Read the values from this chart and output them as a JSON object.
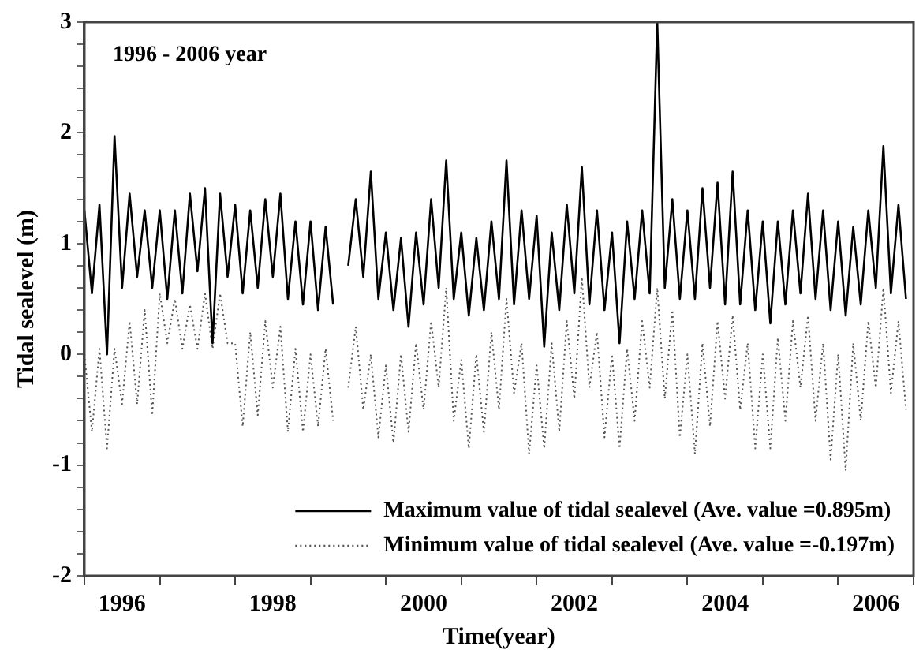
{
  "chart_data": {
    "type": "line",
    "xlabel": "Time(year)",
    "ylabel": "Tidal sealevel (m)",
    "annotations": [
      "1996 - 2006 year"
    ],
    "x": [
      1996.0,
      1996.1,
      1996.2,
      1996.3,
      1996.4,
      1996.5,
      1996.6,
      1996.7,
      1996.8,
      1996.9,
      1997.0,
      1997.1,
      1997.2,
      1997.3,
      1997.4,
      1997.5,
      1997.6,
      1997.7,
      1997.8,
      1997.9,
      1998.0,
      1998.1,
      1998.2,
      1998.3,
      1998.4,
      1998.5,
      1998.6,
      1998.7,
      1998.8,
      1998.9,
      1999.0,
      1999.1,
      1999.2,
      1999.3,
      1999.4,
      1999.5,
      1999.6,
      1999.7,
      1999.8,
      1999.9,
      2000.0,
      2000.1,
      2000.2,
      2000.3,
      2000.4,
      2000.5,
      2000.6,
      2000.7,
      2000.8,
      2000.9,
      2001.0,
      2001.1,
      2001.2,
      2001.3,
      2001.4,
      2001.5,
      2001.6,
      2001.7,
      2001.8,
      2001.9,
      2002.0,
      2002.1,
      2002.2,
      2002.3,
      2002.4,
      2002.5,
      2002.6,
      2002.7,
      2002.8,
      2002.9,
      2003.0,
      2003.1,
      2003.2,
      2003.3,
      2003.4,
      2003.5,
      2003.6,
      2003.7,
      2003.8,
      2003.9,
      2004.0,
      2004.1,
      2004.2,
      2004.3,
      2004.4,
      2004.5,
      2004.6,
      2004.7,
      2004.8,
      2004.9,
      2005.0,
      2005.1,
      2005.2,
      2005.3,
      2005.4,
      2005.5,
      2005.6,
      2005.7,
      2005.8,
      2005.9,
      2006.0,
      2006.1,
      2006.2,
      2006.3,
      2006.4,
      2006.5,
      2006.6,
      2006.7,
      2006.8,
      2006.9
    ],
    "series": [
      {
        "name": "Maximum value of tidal sealevel (Ave. value =0.895m)",
        "color": "#000000",
        "line_style": "solid",
        "values": [
          1.3,
          0.55,
          1.35,
          0.0,
          1.97,
          0.6,
          1.45,
          0.7,
          1.3,
          0.6,
          1.3,
          0.5,
          1.3,
          0.55,
          1.45,
          0.75,
          1.5,
          0.1,
          1.45,
          0.7,
          1.35,
          0.55,
          1.3,
          0.6,
          1.4,
          0.7,
          1.45,
          0.5,
          1.2,
          0.45,
          1.2,
          0.4,
          1.15,
          0.45,
          null,
          0.8,
          1.4,
          0.7,
          1.65,
          0.5,
          1.1,
          0.4,
          1.05,
          0.25,
          1.1,
          0.45,
          1.4,
          0.6,
          1.75,
          0.5,
          1.1,
          0.35,
          1.05,
          0.4,
          1.2,
          0.5,
          1.75,
          0.45,
          1.3,
          0.5,
          1.25,
          0.07,
          1.1,
          0.4,
          1.35,
          0.55,
          1.69,
          0.45,
          1.3,
          0.4,
          1.1,
          0.1,
          1.2,
          0.5,
          1.3,
          0.55,
          3.0,
          0.6,
          1.4,
          0.5,
          1.3,
          0.5,
          1.5,
          0.6,
          1.55,
          0.45,
          1.65,
          0.45,
          1.3,
          0.4,
          1.2,
          0.28,
          1.2,
          0.45,
          1.3,
          0.55,
          1.45,
          0.5,
          1.3,
          0.4,
          1.2,
          0.35,
          1.15,
          0.45,
          1.3,
          0.6,
          1.88,
          0.55,
          1.35,
          0.5
        ]
      },
      {
        "name": "Minimum value of tidal sealevel (Ave. value =-0.197m)",
        "color": "#555555",
        "line_style": "dotted",
        "values": [
          0.0,
          -0.7,
          0.05,
          -0.85,
          0.05,
          -0.45,
          0.3,
          -0.45,
          0.4,
          -0.55,
          0.55,
          0.1,
          0.5,
          0.05,
          0.45,
          0.05,
          0.55,
          0.05,
          0.55,
          0.1,
          0.1,
          -0.65,
          0.2,
          -0.55,
          0.3,
          -0.3,
          0.25,
          -0.7,
          0.05,
          -0.7,
          0.0,
          -0.65,
          0.05,
          -0.6,
          null,
          -0.3,
          0.25,
          -0.5,
          0.0,
          -0.75,
          -0.1,
          -0.8,
          0.0,
          -0.7,
          0.1,
          -0.5,
          0.3,
          -0.3,
          0.6,
          -0.6,
          -0.05,
          -0.85,
          0.0,
          -0.7,
          0.2,
          -0.5,
          0.5,
          -0.35,
          0.1,
          -0.9,
          -0.1,
          -0.85,
          0.1,
          -0.7,
          0.3,
          -0.4,
          0.7,
          -0.3,
          0.2,
          -0.75,
          0.0,
          -0.85,
          0.05,
          -0.6,
          0.3,
          -0.3,
          0.6,
          -0.4,
          0.4,
          -0.75,
          0.0,
          -0.9,
          0.1,
          -0.65,
          0.3,
          -0.4,
          0.35,
          -0.5,
          0.1,
          -0.85,
          0.0,
          -0.85,
          0.15,
          -0.6,
          0.3,
          -0.3,
          0.35,
          -0.6,
          0.1,
          -0.95,
          0.0,
          -1.05,
          0.1,
          -0.6,
          0.3,
          -0.3,
          0.6,
          -0.35,
          0.3,
          -0.5
        ]
      }
    ],
    "xlim": [
      1996,
      2007
    ],
    "xticks": [
      {
        "value": 1996,
        "label": null
      },
      {
        "value": 1996.5,
        "label": "1996"
      },
      {
        "value": 1997,
        "label": null
      },
      {
        "value": 1998,
        "label": null
      },
      {
        "value": 1998.5,
        "label": "1998"
      },
      {
        "value": 1999,
        "label": null
      },
      {
        "value": 2000,
        "label": null
      },
      {
        "value": 2000.5,
        "label": "2000"
      },
      {
        "value": 2001,
        "label": null
      },
      {
        "value": 2002,
        "label": null
      },
      {
        "value": 2002.5,
        "label": "2002"
      },
      {
        "value": 2003,
        "label": null
      },
      {
        "value": 2004,
        "label": null
      },
      {
        "value": 2004.5,
        "label": "2004"
      },
      {
        "value": 2005,
        "label": null
      },
      {
        "value": 2006,
        "label": null
      },
      {
        "value": 2006.5,
        "label": "2006"
      },
      {
        "value": 2007,
        "label": null
      }
    ],
    "ylim": [
      -2,
      3
    ],
    "yticks": [
      -2,
      {
        "value": -1.8,
        "label": null
      },
      {
        "value": -1.6,
        "label": null
      },
      {
        "value": -1.4,
        "label": null
      },
      {
        "value": -1.2,
        "label": null
      },
      -1,
      {
        "value": -0.8,
        "label": null
      },
      {
        "value": -0.6,
        "label": null
      },
      {
        "value": -0.4,
        "label": null
      },
      {
        "value": -0.2,
        "label": null
      },
      0,
      {
        "value": 0.2,
        "label": null
      },
      {
        "value": 0.4,
        "label": null
      },
      {
        "value": 0.6,
        "label": null
      },
      {
        "value": 0.8,
        "label": null
      },
      1,
      {
        "value": 1.2,
        "label": null
      },
      {
        "value": 1.4,
        "label": null
      },
      {
        "value": 1.6,
        "label": null
      },
      {
        "value": 1.8,
        "label": null
      },
      2,
      {
        "value": 2.2,
        "label": null
      },
      {
        "value": 2.4,
        "label": null
      },
      {
        "value": 2.6,
        "label": null
      },
      {
        "value": 2.8,
        "label": null
      },
      3
    ],
    "grid": false,
    "legend": "bottom right",
    "marker": "none"
  }
}
